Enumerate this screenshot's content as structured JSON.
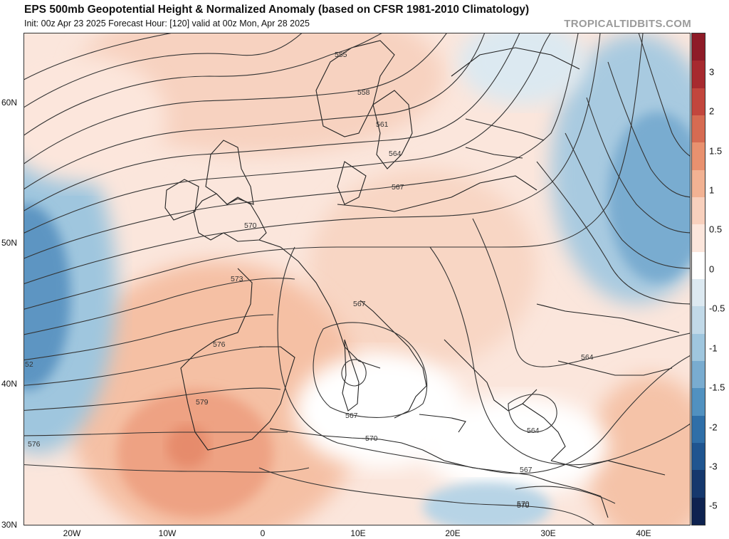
{
  "header": {
    "title": "EPS 500mb Geopotential Height & Normalized Anomaly (based on CFSR 1981-2010 Climatology)",
    "subtitle": "Init: 00z Apr 23 2025   Forecast Hour: [120]   valid at 00z Mon, Apr 28 2025",
    "brand": "TROPICALTIDBITS.COM"
  },
  "axes": {
    "lat_labels": [
      "60N",
      "50N",
      "40N",
      "30N"
    ],
    "lon_labels": [
      "20W",
      "10W",
      "0",
      "10E",
      "20E",
      "30E",
      "40E"
    ]
  },
  "colorbar": {
    "labels": [
      "3",
      "2",
      "1.5",
      "1",
      "0.5",
      "0",
      "-0.5",
      "-1",
      "-1.5",
      "-2",
      "-3",
      "-5"
    ],
    "colors": [
      "#8e1b27",
      "#a72a2f",
      "#c2463d",
      "#d66b52",
      "#e9916f",
      "#f2b293",
      "#f8d0bd",
      "#fce6dc",
      "#ffffff",
      "#dce9f1",
      "#c1d9e8",
      "#9fc6de",
      "#79acd0",
      "#5191c0",
      "#2f6fa8",
      "#1f5590",
      "#15386d",
      "#0e2350"
    ]
  },
  "contour_labels": [
    "555",
    "558",
    "561",
    "564",
    "567",
    "570",
    "570",
    "573",
    "576",
    "579",
    "576",
    "567",
    "567",
    "570",
    "567",
    "570",
    "564",
    "564",
    "52"
  ]
}
